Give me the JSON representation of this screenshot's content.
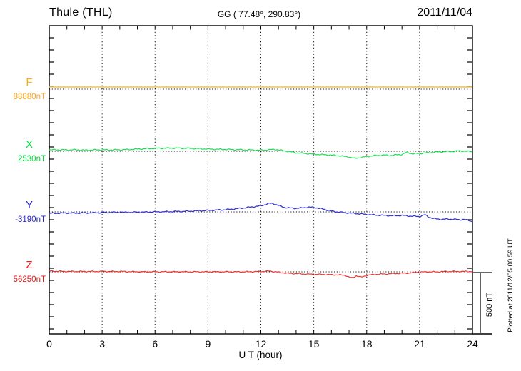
{
  "header": {
    "station": "Thule (THL)",
    "coords": "GG ( 77.48°, 290.83°)",
    "date": "2011/11/04"
  },
  "footer_note": "Plotted at 2011/12/05 00:59 UT",
  "chart_data": {
    "type": "line",
    "title": "Thule (THL) magnetogram",
    "xlabel": "U T (hour)",
    "x_unit": "hour UT",
    "x_range": [
      0,
      24
    ],
    "x_ticks": [
      0,
      3,
      6,
      9,
      12,
      15,
      18,
      21,
      24
    ],
    "x_minor_step_hours": 1,
    "y_unit": "nT",
    "y_minor_tick_nT": 100,
    "grid": "dotted vertical every 3 h; dotted horizontal baseline per component",
    "scale_bar": {
      "label": "500 nT",
      "nT": 500
    },
    "points_format": "[hour_UT, offset_nT_from_baseline]; actual value = base_nT + offset",
    "series": [
      {
        "id": "F",
        "label": "F",
        "base_label": "88880nT",
        "base_nT": 88880,
        "color": "#FFA81E",
        "line_color": "#FFC63C",
        "points": [
          [
            0,
            18
          ],
          [
            24,
            18
          ]
        ]
      },
      {
        "id": "X",
        "label": "X",
        "base_label": "2530nT",
        "base_nT": 2530,
        "color": "#00DC3C",
        "line_color": "#16DF50",
        "points": [
          [
            0,
            12
          ],
          [
            0.5,
            12
          ],
          [
            1,
            11
          ],
          [
            1.5,
            12
          ],
          [
            2,
            9
          ],
          [
            2.5,
            11
          ],
          [
            3,
            12
          ],
          [
            3.5,
            11
          ],
          [
            4,
            12
          ],
          [
            4.5,
            14
          ],
          [
            5,
            18
          ],
          [
            5.5,
            21
          ],
          [
            6,
            24
          ],
          [
            6.5,
            25
          ],
          [
            7,
            26
          ],
          [
            7.5,
            25
          ],
          [
            8,
            24
          ],
          [
            8.5,
            21
          ],
          [
            9,
            18
          ],
          [
            9.5,
            16
          ],
          [
            10,
            15
          ],
          [
            10.5,
            13
          ],
          [
            11,
            12
          ],
          [
            11.5,
            10
          ],
          [
            12,
            9
          ],
          [
            12.4,
            12
          ],
          [
            12.8,
            15
          ],
          [
            13,
            12
          ],
          [
            13.2,
            6
          ],
          [
            13.5,
            0
          ],
          [
            14,
            -12
          ],
          [
            14.5,
            -18
          ],
          [
            15,
            -24
          ],
          [
            15.5,
            -28
          ],
          [
            16,
            -32
          ],
          [
            16.5,
            -38
          ],
          [
            17,
            -47
          ],
          [
            17.3,
            -59
          ],
          [
            17.6,
            -53
          ],
          [
            18,
            -44
          ],
          [
            18.5,
            -35
          ],
          [
            19,
            -32
          ],
          [
            19.4,
            -35
          ],
          [
            19.7,
            -29
          ],
          [
            20,
            -26
          ],
          [
            20.3,
            -9
          ],
          [
            20.6,
            -21
          ],
          [
            21,
            -18
          ],
          [
            21.5,
            -12
          ],
          [
            22,
            -6
          ],
          [
            22.5,
            -3
          ],
          [
            23,
            0
          ],
          [
            23.3,
            3
          ],
          [
            23.6,
            0
          ],
          [
            24,
            -3
          ]
        ]
      },
      {
        "id": "Y",
        "label": "Y",
        "base_label": "-3190nT",
        "base_nT": -3190,
        "color": "#2929CC",
        "line_color": "#3434D0",
        "points": [
          [
            0,
            -12
          ],
          [
            0.5,
            -11
          ],
          [
            1,
            -9
          ],
          [
            1.5,
            -10
          ],
          [
            2,
            -9
          ],
          [
            2.5,
            -8
          ],
          [
            3,
            -6
          ],
          [
            3.5,
            -5
          ],
          [
            4,
            -3
          ],
          [
            4.5,
            -4
          ],
          [
            5,
            -3
          ],
          [
            5.5,
            -2
          ],
          [
            6,
            0
          ],
          [
            6.5,
            1
          ],
          [
            7,
            3
          ],
          [
            7.5,
            4
          ],
          [
            8,
            6
          ],
          [
            8.5,
            9
          ],
          [
            9,
            12
          ],
          [
            9.5,
            15
          ],
          [
            10,
            18
          ],
          [
            10.5,
            24
          ],
          [
            11,
            32
          ],
          [
            11.5,
            41
          ],
          [
            12,
            50
          ],
          [
            12.3,
            62
          ],
          [
            12.5,
            71
          ],
          [
            12.7,
            68
          ],
          [
            13,
            53
          ],
          [
            13.3,
            38
          ],
          [
            13.6,
            32
          ],
          [
            14,
            29
          ],
          [
            14.3,
            32
          ],
          [
            14.6,
            38
          ],
          [
            15,
            38
          ],
          [
            15.3,
            29
          ],
          [
            15.6,
            21
          ],
          [
            16,
            6
          ],
          [
            16.5,
            -3
          ],
          [
            17,
            -9
          ],
          [
            17.5,
            -15
          ],
          [
            18,
            -21
          ],
          [
            18.5,
            -26
          ],
          [
            19,
            -29
          ],
          [
            19.5,
            -32
          ],
          [
            20,
            -29
          ],
          [
            20.5,
            -35
          ],
          [
            21,
            -38
          ],
          [
            21.3,
            -24
          ],
          [
            21.5,
            -41
          ],
          [
            21.8,
            -56
          ],
          [
            22,
            -59
          ],
          [
            22.3,
            -62
          ],
          [
            22.6,
            -59
          ],
          [
            23,
            -62
          ],
          [
            23.3,
            -65
          ],
          [
            23.5,
            -62
          ],
          [
            23.8,
            -71
          ],
          [
            24,
            -79
          ]
        ]
      },
      {
        "id": "Z",
        "label": "Z",
        "base_label": "56250nT",
        "base_nT": 56250,
        "color": "#E31B1B",
        "line_color": "#EE3030",
        "points": [
          [
            0,
            6
          ],
          [
            0.5,
            5
          ],
          [
            1,
            3
          ],
          [
            2,
            3
          ],
          [
            3,
            3
          ],
          [
            4,
            3
          ],
          [
            5,
            0
          ],
          [
            6,
            0
          ],
          [
            7,
            0
          ],
          [
            8,
            0
          ],
          [
            9,
            0
          ],
          [
            10,
            0
          ],
          [
            11,
            0
          ],
          [
            12,
            3
          ],
          [
            12.5,
            6
          ],
          [
            13,
            -3
          ],
          [
            13.5,
            -12
          ],
          [
            14,
            -15
          ],
          [
            14.5,
            -18
          ],
          [
            15,
            -21
          ],
          [
            15.5,
            -21
          ],
          [
            16,
            -24
          ],
          [
            16.5,
            -26
          ],
          [
            16.8,
            -29
          ],
          [
            17,
            -44
          ],
          [
            17.2,
            -50
          ],
          [
            17.4,
            -32
          ],
          [
            17.7,
            -44
          ],
          [
            18,
            -29
          ],
          [
            18.5,
            -21
          ],
          [
            19,
            -18
          ],
          [
            19.5,
            -15
          ],
          [
            20,
            -12
          ],
          [
            20.5,
            -9
          ],
          [
            21,
            -3
          ],
          [
            21.5,
            0
          ],
          [
            22,
            0
          ],
          [
            22.5,
            3
          ],
          [
            23,
            3
          ],
          [
            23.5,
            3
          ],
          [
            24,
            3
          ]
        ]
      }
    ]
  }
}
